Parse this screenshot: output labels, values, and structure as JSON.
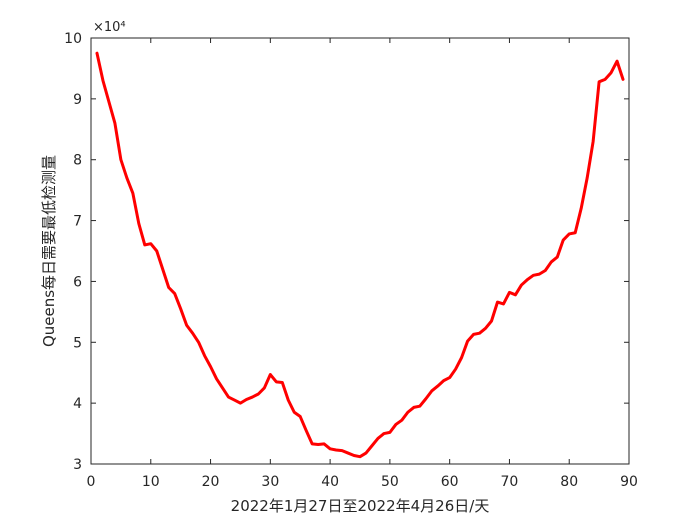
{
  "chart_data": {
    "type": "line",
    "xlabel": "2022年1月27日至2022年4月26日/天",
    "ylabel": "Queens每日需要最低检测量",
    "y_exponent_label": "×10⁴",
    "xlim": [
      0,
      90
    ],
    "ylim": [
      30000,
      100000
    ],
    "x_ticks": [
      0,
      10,
      20,
      30,
      40,
      50,
      60,
      70,
      80,
      90
    ],
    "y_ticks": [
      3,
      4,
      5,
      6,
      7,
      8,
      9,
      10
    ],
    "grid": false,
    "series": [
      {
        "color": "#ff0000",
        "x": [
          1,
          2,
          3,
          4,
          5,
          6,
          7,
          8,
          9,
          10,
          11,
          12,
          13,
          14,
          15,
          16,
          17,
          18,
          19,
          20,
          21,
          22,
          23,
          24,
          25,
          26,
          27,
          28,
          29,
          30,
          31,
          32,
          33,
          34,
          35,
          36,
          37,
          38,
          39,
          40,
          41,
          42,
          43,
          44,
          45,
          46,
          47,
          48,
          49,
          50,
          51,
          52,
          53,
          54,
          55,
          56,
          57,
          58,
          59,
          60,
          61,
          62,
          63,
          64,
          65,
          66,
          67,
          68,
          69,
          70,
          71,
          72,
          73,
          74,
          75,
          76,
          77,
          78,
          79,
          80,
          81,
          82,
          83,
          84,
          85,
          86,
          87,
          88,
          89
        ],
        "y": [
          97500,
          93000,
          89500,
          86000,
          80000,
          77000,
          74500,
          69500,
          66000,
          66200,
          65000,
          62000,
          59000,
          58000,
          55500,
          52800,
          51500,
          50000,
          47800,
          46000,
          44000,
          42500,
          41000,
          40500,
          40000,
          40600,
          41000,
          41500,
          42500,
          44700,
          43500,
          43400,
          40500,
          38500,
          37800,
          35500,
          33300,
          33200,
          33300,
          32500,
          32300,
          32200,
          31800,
          31400,
          31200,
          31800,
          33000,
          34200,
          35000,
          35200,
          36500,
          37200,
          38500,
          39300,
          39500,
          40700,
          42000,
          42800,
          43700,
          44200,
          45600,
          47500,
          50200,
          51300,
          51500,
          52300,
          53500,
          56600,
          56300,
          58200,
          57800,
          59400,
          60300,
          61000,
          61200,
          61800,
          63200,
          64000,
          66800,
          67800,
          68000,
          72000,
          77000,
          83000,
          92800,
          93200,
          94300,
          96200,
          93200
        ]
      }
    ]
  }
}
